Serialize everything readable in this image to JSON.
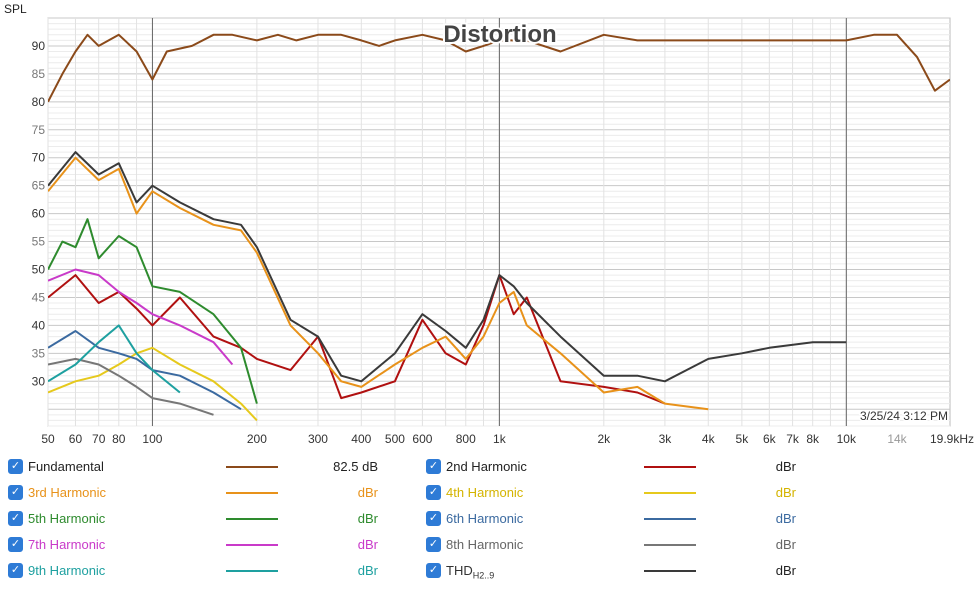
{
  "chart_data": {
    "type": "line",
    "title": "Distortion",
    "ylabel": "SPL",
    "timestamp": "3/25/24 3:12 PM",
    "x_scale": "log",
    "xlim": [
      50,
      19900
    ],
    "ylim": [
      22,
      95
    ],
    "y_ticks": [
      30,
      35,
      40,
      45,
      50,
      55,
      60,
      65,
      70,
      75,
      80,
      85,
      90
    ],
    "x_ticks": [
      {
        "v": 50,
        "label": "50"
      },
      {
        "v": 60,
        "label": "60"
      },
      {
        "v": 70,
        "label": "70"
      },
      {
        "v": 80,
        "label": "80"
      },
      {
        "v": 100,
        "label": "100"
      },
      {
        "v": 200,
        "label": "200"
      },
      {
        "v": 300,
        "label": "300"
      },
      {
        "v": 400,
        "label": "400"
      },
      {
        "v": 500,
        "label": "500"
      },
      {
        "v": 600,
        "label": "600"
      },
      {
        "v": 800,
        "label": "800"
      },
      {
        "v": 1000,
        "label": "1k"
      },
      {
        "v": 2000,
        "label": "2k"
      },
      {
        "v": 3000,
        "label": "3k"
      },
      {
        "v": 4000,
        "label": "4k"
      },
      {
        "v": 5000,
        "label": "5k"
      },
      {
        "v": 6000,
        "label": "6k"
      },
      {
        "v": 7000,
        "label": "7k"
      },
      {
        "v": 8000,
        "label": "8k"
      },
      {
        "v": 10000,
        "label": "10k"
      },
      {
        "v": 14000,
        "label": "14k"
      },
      {
        "v": 19900,
        "label": "19.9kHz"
      }
    ],
    "series": [
      {
        "name": "Fundamental",
        "color": "#8b4a1a",
        "x": [
          50,
          55,
          60,
          65,
          70,
          80,
          90,
          100,
          110,
          130,
          150,
          170,
          200,
          230,
          260,
          300,
          350,
          400,
          450,
          500,
          600,
          700,
          800,
          900,
          1000,
          1200,
          1500,
          2000,
          2500,
          3000,
          4000,
          5000,
          6000,
          8000,
          10000,
          12000,
          14000,
          16000,
          18000,
          19900
        ],
        "y": [
          80,
          85,
          89,
          92,
          90,
          92,
          89,
          84,
          89,
          90,
          92,
          92,
          91,
          92,
          91,
          92,
          92,
          91,
          90,
          91,
          92,
          91,
          89,
          90,
          91,
          91,
          89,
          92,
          91,
          91,
          91,
          91,
          91,
          91,
          91,
          92,
          92,
          88,
          82,
          84
        ]
      },
      {
        "name": "2nd Harmonic",
        "color": "#b01010",
        "x": [
          50,
          60,
          70,
          80,
          90,
          100,
          120,
          150,
          180,
          200,
          250,
          300,
          350,
          400,
          500,
          600,
          700,
          800,
          900,
          1000,
          1100,
          1200,
          1500,
          2000,
          2500,
          3000
        ],
        "y": [
          45,
          49,
          44,
          46,
          43,
          40,
          45,
          38,
          36,
          34,
          32,
          38,
          27,
          28,
          30,
          41,
          35,
          33,
          40,
          49,
          42,
          45,
          30,
          29,
          28,
          26
        ]
      },
      {
        "name": "3rd Harmonic",
        "color": "#e8921a",
        "x": [
          50,
          60,
          70,
          80,
          90,
          100,
          120,
          150,
          180,
          200,
          250,
          300,
          350,
          400,
          500,
          600,
          700,
          800,
          900,
          1000,
          1100,
          1200,
          1500,
          2000,
          2500,
          3000,
          4000
        ],
        "y": [
          64,
          70,
          66,
          68,
          60,
          64,
          61,
          58,
          57,
          53,
          40,
          35,
          30,
          29,
          33,
          36,
          38,
          34,
          38,
          44,
          46,
          40,
          35,
          28,
          29,
          26,
          25
        ]
      },
      {
        "name": "4th Harmonic",
        "color": "#e6c91c",
        "x": [
          50,
          60,
          70,
          80,
          90,
          100,
          120,
          150,
          180,
          200
        ],
        "y": [
          28,
          30,
          31,
          33,
          35,
          36,
          33,
          30,
          26,
          23
        ]
      },
      {
        "name": "5th Harmonic",
        "color": "#2e8b2e",
        "x": [
          50,
          55,
          60,
          65,
          70,
          80,
          90,
          100,
          120,
          150,
          180,
          200
        ],
        "y": [
          50,
          55,
          54,
          59,
          52,
          56,
          54,
          47,
          46,
          42,
          36,
          26
        ]
      },
      {
        "name": "6th Harmonic",
        "color": "#3b6aa0",
        "x": [
          50,
          60,
          70,
          80,
          90,
          100,
          120,
          150,
          180
        ],
        "y": [
          36,
          39,
          36,
          35,
          34,
          32,
          31,
          28,
          25
        ]
      },
      {
        "name": "7th Harmonic",
        "color": "#c93ac9",
        "x": [
          50,
          60,
          70,
          80,
          90,
          100,
          120,
          150,
          170
        ],
        "y": [
          48,
          50,
          49,
          46,
          44,
          42,
          40,
          37,
          33
        ]
      },
      {
        "name": "8th Harmonic",
        "color": "#777777",
        "x": [
          50,
          60,
          70,
          80,
          90,
          100,
          120,
          150
        ],
        "y": [
          33,
          34,
          33,
          31,
          29,
          27,
          26,
          24
        ]
      },
      {
        "name": "9th Harmonic",
        "color": "#1ea0a0",
        "x": [
          50,
          60,
          70,
          80,
          90,
          100,
          120
        ],
        "y": [
          30,
          33,
          37,
          40,
          35,
          32,
          28
        ]
      },
      {
        "name": "THDH2..9",
        "color": "#3a3a3a",
        "x": [
          50,
          60,
          70,
          80,
          90,
          100,
          120,
          150,
          180,
          200,
          250,
          300,
          350,
          400,
          500,
          600,
          700,
          800,
          900,
          1000,
          1100,
          1200,
          1500,
          2000,
          2500,
          3000,
          4000,
          5000,
          6000,
          8000,
          10000
        ],
        "y": [
          65,
          71,
          67,
          69,
          62,
          65,
          62,
          59,
          58,
          54,
          41,
          38,
          31,
          30,
          35,
          42,
          39,
          36,
          41,
          49,
          47,
          44,
          38,
          31,
          31,
          30,
          34,
          35,
          36,
          37,
          37
        ]
      }
    ]
  },
  "legend": {
    "items": [
      {
        "label": "Fundamental",
        "color": "#8b4a1a",
        "value": "82.5 dB",
        "check": "✓"
      },
      {
        "label": "2nd Harmonic",
        "color": "#b01010",
        "value": "dBr",
        "check": "✓"
      },
      {
        "label": "3rd Harmonic",
        "color": "#e8921a",
        "value": "dBr",
        "check": "✓"
      },
      {
        "label": "4th Harmonic",
        "color": "#e6c91c",
        "value": "dBr",
        "check": "✓"
      },
      {
        "label": "5th Harmonic",
        "color": "#2e8b2e",
        "value": "dBr",
        "check": "✓"
      },
      {
        "label": "6th Harmonic",
        "color": "#3b6aa0",
        "value": "dBr",
        "check": "✓"
      },
      {
        "label": "7th Harmonic",
        "color": "#c93ac9",
        "value": "dBr",
        "check": "✓"
      },
      {
        "label": "8th Harmonic",
        "color": "#777777",
        "value": "dBr",
        "check": "✓"
      },
      {
        "label": "9th Harmonic",
        "color": "#1ea0a0",
        "value": "dBr",
        "check": "✓"
      },
      {
        "label": "THD",
        "sub": "H2..9",
        "color": "#3a3a3a",
        "value": "dBr",
        "check": "✓"
      }
    ]
  }
}
